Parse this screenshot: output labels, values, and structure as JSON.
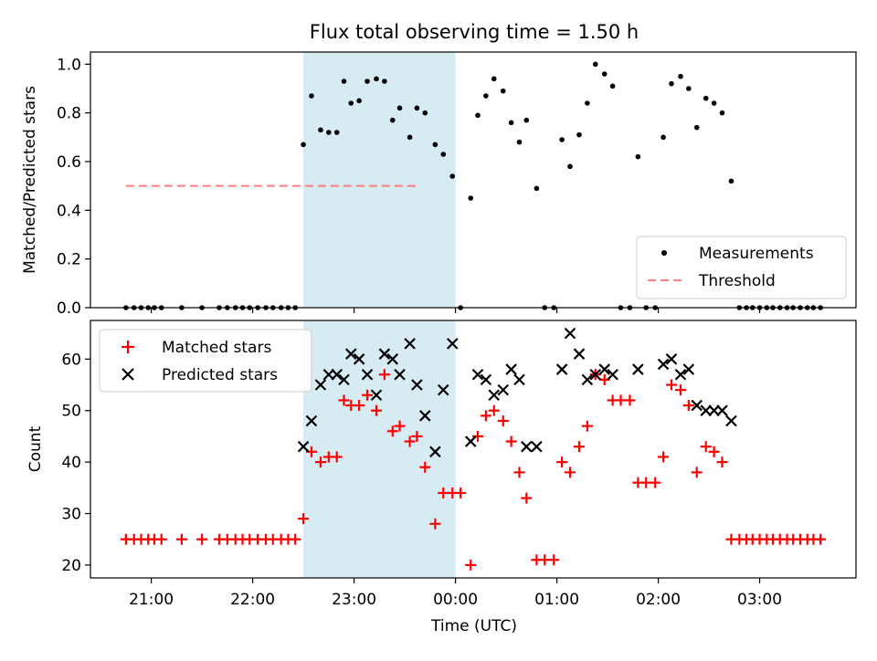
{
  "title": "Flux total observing time = 1.50 h",
  "shaded_window": {
    "start_hours": 22.5,
    "end_hours": 24.0,
    "color": "#add8e6"
  },
  "chart_data": [
    {
      "type": "scatter",
      "ylabel": "Matched/Predicted stars",
      "ylim": [
        0,
        1.05
      ],
      "yticks": [
        {
          "value": 0.0,
          "label": "0.0"
        },
        {
          "value": 0.2,
          "label": "0.2"
        },
        {
          "value": 0.4,
          "label": "0.4"
        },
        {
          "value": 0.6,
          "label": "0.6"
        },
        {
          "value": 0.8,
          "label": "0.8"
        },
        {
          "value": 1.0,
          "label": "1.0"
        }
      ],
      "legend_position": "lower-right",
      "threshold": {
        "name": "Threshold",
        "value": 0.5,
        "x_range": [
          20.75,
          23.65
        ],
        "color": "#ff7f7f"
      },
      "series": [
        {
          "name": "Measurements",
          "color": "#000000",
          "points": [
            [
              20.75,
              0
            ],
            [
              20.83,
              0
            ],
            [
              20.9,
              0
            ],
            [
              20.97,
              0
            ],
            [
              21.03,
              0
            ],
            [
              21.1,
              0
            ],
            [
              21.3,
              0
            ],
            [
              21.5,
              0
            ],
            [
              21.67,
              0
            ],
            [
              21.75,
              0
            ],
            [
              21.83,
              0
            ],
            [
              21.9,
              0
            ],
            [
              21.97,
              0
            ],
            [
              22.05,
              0
            ],
            [
              22.13,
              0
            ],
            [
              22.2,
              0
            ],
            [
              22.28,
              0
            ],
            [
              22.35,
              0
            ],
            [
              22.42,
              0
            ],
            [
              22.5,
              0.67
            ],
            [
              22.58,
              0.87
            ],
            [
              22.67,
              0.73
            ],
            [
              22.75,
              0.72
            ],
            [
              22.83,
              0.72
            ],
            [
              22.9,
              0.93
            ],
            [
              22.97,
              0.84
            ],
            [
              23.05,
              0.85
            ],
            [
              23.13,
              0.93
            ],
            [
              23.22,
              0.94
            ],
            [
              23.3,
              0.93
            ],
            [
              23.38,
              0.77
            ],
            [
              23.45,
              0.82
            ],
            [
              23.55,
              0.7
            ],
            [
              23.62,
              0.82
            ],
            [
              23.7,
              0.8
            ],
            [
              23.8,
              0.67
            ],
            [
              23.88,
              0.63
            ],
            [
              23.97,
              0.54
            ],
            [
              24.05,
              0.0
            ],
            [
              24.15,
              0.45
            ],
            [
              24.22,
              0.79
            ],
            [
              24.3,
              0.87
            ],
            [
              24.38,
              0.94
            ],
            [
              24.47,
              0.89
            ],
            [
              24.55,
              0.76
            ],
            [
              24.63,
              0.68
            ],
            [
              24.7,
              0.77
            ],
            [
              24.8,
              0.49
            ],
            [
              24.88,
              0.0
            ],
            [
              24.97,
              0.0
            ],
            [
              25.05,
              0.69
            ],
            [
              25.13,
              0.58
            ],
            [
              25.22,
              0.71
            ],
            [
              25.3,
              0.84
            ],
            [
              25.38,
              1.0
            ],
            [
              25.47,
              0.96
            ],
            [
              25.55,
              0.91
            ],
            [
              25.63,
              0.0
            ],
            [
              25.72,
              0.0
            ],
            [
              25.8,
              0.62
            ],
            [
              25.88,
              0.0
            ],
            [
              25.97,
              0.0
            ],
            [
              26.05,
              0.7
            ],
            [
              26.13,
              0.92
            ],
            [
              26.22,
              0.95
            ],
            [
              26.3,
              0.9
            ],
            [
              26.38,
              0.74
            ],
            [
              26.47,
              0.86
            ],
            [
              26.55,
              0.84
            ],
            [
              26.63,
              0.8
            ],
            [
              26.72,
              0.52
            ],
            [
              26.8,
              0
            ],
            [
              26.87,
              0
            ],
            [
              26.93,
              0
            ],
            [
              27.0,
              0
            ],
            [
              27.07,
              0
            ],
            [
              27.13,
              0
            ],
            [
              27.2,
              0
            ],
            [
              27.27,
              0
            ],
            [
              27.33,
              0
            ],
            [
              27.4,
              0
            ],
            [
              27.47,
              0
            ],
            [
              27.53,
              0
            ],
            [
              27.6,
              0
            ]
          ]
        }
      ]
    },
    {
      "type": "scatter",
      "xlabel": "Time (UTC)",
      "ylabel": "Count",
      "ylim": [
        17.5,
        67.5
      ],
      "yticks": [
        {
          "value": 20,
          "label": "20"
        },
        {
          "value": 30,
          "label": "30"
        },
        {
          "value": 40,
          "label": "40"
        },
        {
          "value": 50,
          "label": "50"
        },
        {
          "value": 60,
          "label": "60"
        }
      ],
      "xlim": [
        20.4,
        27.95
      ],
      "xticks": [
        {
          "value": 21,
          "label": "21:00"
        },
        {
          "value": 22,
          "label": "22:00"
        },
        {
          "value": 23,
          "label": "23:00"
        },
        {
          "value": 24,
          "label": "00:00"
        },
        {
          "value": 25,
          "label": "01:00"
        },
        {
          "value": 26,
          "label": "02:00"
        },
        {
          "value": 27,
          "label": "03:00"
        }
      ],
      "legend_position": "upper-left",
      "series": [
        {
          "name": "Matched stars",
          "marker": "plus",
          "color": "#ff0000",
          "points": [
            [
              20.75,
              25
            ],
            [
              20.83,
              25
            ],
            [
              20.9,
              25
            ],
            [
              20.97,
              25
            ],
            [
              21.03,
              25
            ],
            [
              21.1,
              25
            ],
            [
              21.3,
              25
            ],
            [
              21.5,
              25
            ],
            [
              21.67,
              25
            ],
            [
              21.75,
              25
            ],
            [
              21.83,
              25
            ],
            [
              21.9,
              25
            ],
            [
              21.97,
              25
            ],
            [
              22.05,
              25
            ],
            [
              22.13,
              25
            ],
            [
              22.2,
              25
            ],
            [
              22.28,
              25
            ],
            [
              22.35,
              25
            ],
            [
              22.42,
              25
            ],
            [
              22.5,
              29
            ],
            [
              22.58,
              42
            ],
            [
              22.67,
              40
            ],
            [
              22.75,
              41
            ],
            [
              22.83,
              41
            ],
            [
              22.9,
              52
            ],
            [
              22.97,
              51
            ],
            [
              23.05,
              51
            ],
            [
              23.13,
              53
            ],
            [
              23.22,
              50
            ],
            [
              23.3,
              57
            ],
            [
              23.38,
              46
            ],
            [
              23.45,
              47
            ],
            [
              23.55,
              44
            ],
            [
              23.62,
              45
            ],
            [
              23.7,
              39
            ],
            [
              23.8,
              28
            ],
            [
              23.88,
              34
            ],
            [
              23.97,
              34
            ],
            [
              24.05,
              34
            ],
            [
              24.15,
              20
            ],
            [
              24.22,
              45
            ],
            [
              24.3,
              49
            ],
            [
              24.38,
              50
            ],
            [
              24.47,
              48
            ],
            [
              24.55,
              44
            ],
            [
              24.63,
              38
            ],
            [
              24.7,
              33
            ],
            [
              24.8,
              21
            ],
            [
              24.88,
              21
            ],
            [
              24.97,
              21
            ],
            [
              25.05,
              40
            ],
            [
              25.13,
              38
            ],
            [
              25.22,
              43
            ],
            [
              25.3,
              47
            ],
            [
              25.38,
              57
            ],
            [
              25.47,
              56
            ],
            [
              25.55,
              52
            ],
            [
              25.63,
              52
            ],
            [
              25.72,
              52
            ],
            [
              25.8,
              36
            ],
            [
              25.88,
              36
            ],
            [
              25.97,
              36
            ],
            [
              26.05,
              41
            ],
            [
              26.13,
              55
            ],
            [
              26.22,
              54
            ],
            [
              26.3,
              51
            ],
            [
              26.38,
              38
            ],
            [
              26.47,
              43
            ],
            [
              26.55,
              42
            ],
            [
              26.63,
              40
            ],
            [
              26.72,
              25
            ],
            [
              26.8,
              25
            ],
            [
              26.87,
              25
            ],
            [
              26.93,
              25
            ],
            [
              27.0,
              25
            ],
            [
              27.07,
              25
            ],
            [
              27.13,
              25
            ],
            [
              27.2,
              25
            ],
            [
              27.27,
              25
            ],
            [
              27.33,
              25
            ],
            [
              27.4,
              25
            ],
            [
              27.47,
              25
            ],
            [
              27.53,
              25
            ],
            [
              27.6,
              25
            ]
          ]
        },
        {
          "name": "Predicted stars",
          "marker": "x",
          "color": "#000000",
          "points": [
            [
              22.5,
              43
            ],
            [
              22.58,
              48
            ],
            [
              22.67,
              55
            ],
            [
              22.75,
              57
            ],
            [
              22.83,
              57
            ],
            [
              22.9,
              56
            ],
            [
              22.97,
              61
            ],
            [
              23.05,
              60
            ],
            [
              23.13,
              57
            ],
            [
              23.22,
              53
            ],
            [
              23.3,
              61
            ],
            [
              23.38,
              60
            ],
            [
              23.45,
              57
            ],
            [
              23.55,
              63
            ],
            [
              23.62,
              55
            ],
            [
              23.7,
              49
            ],
            [
              23.8,
              42
            ],
            [
              23.88,
              54
            ],
            [
              23.97,
              63
            ],
            [
              24.15,
              44
            ],
            [
              24.22,
              57
            ],
            [
              24.3,
              56
            ],
            [
              24.38,
              53
            ],
            [
              24.47,
              54
            ],
            [
              24.55,
              58
            ],
            [
              24.63,
              56
            ],
            [
              24.7,
              43
            ],
            [
              24.8,
              43
            ],
            [
              25.05,
              58
            ],
            [
              25.13,
              65
            ],
            [
              25.22,
              61
            ],
            [
              25.3,
              56
            ],
            [
              25.38,
              57
            ],
            [
              25.47,
              58
            ],
            [
              25.55,
              57
            ],
            [
              25.8,
              58
            ],
            [
              26.05,
              59
            ],
            [
              26.13,
              60
            ],
            [
              26.22,
              57
            ],
            [
              26.3,
              58
            ],
            [
              26.38,
              51
            ],
            [
              26.47,
              50
            ],
            [
              26.55,
              50
            ],
            [
              26.63,
              50
            ],
            [
              26.72,
              48
            ]
          ]
        }
      ]
    }
  ]
}
